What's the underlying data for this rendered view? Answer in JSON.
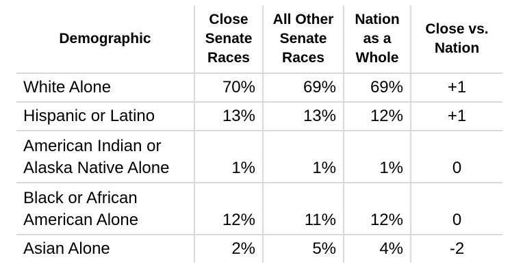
{
  "table": {
    "headers": {
      "demographic": "Demographic",
      "close": [
        "Close",
        "Senate",
        "Races"
      ],
      "other": [
        "All Other",
        "Senate",
        "Races"
      ],
      "nation": [
        "Nation",
        "as a",
        "Whole"
      ],
      "diff": [
        "Close vs.",
        "Nation"
      ]
    },
    "rows": [
      {
        "label": [
          "White Alone"
        ],
        "close": "70%",
        "other": "69%",
        "nation": "69%",
        "diff": "+1"
      },
      {
        "label": [
          "Hispanic or Latino"
        ],
        "close": "13%",
        "other": "13%",
        "nation": "12%",
        "diff": "+1"
      },
      {
        "label": [
          "American Indian or",
          "Alaska Native Alone"
        ],
        "close": "1%",
        "other": "1%",
        "nation": "1%",
        "diff": "0"
      },
      {
        "label": [
          "Black or African",
          "American Alone"
        ],
        "close": "12%",
        "other": "11%",
        "nation": "12%",
        "diff": "0"
      },
      {
        "label": [
          "Asian Alone"
        ],
        "close": "2%",
        "other": "5%",
        "nation": "4%",
        "diff": "-2"
      }
    ]
  }
}
